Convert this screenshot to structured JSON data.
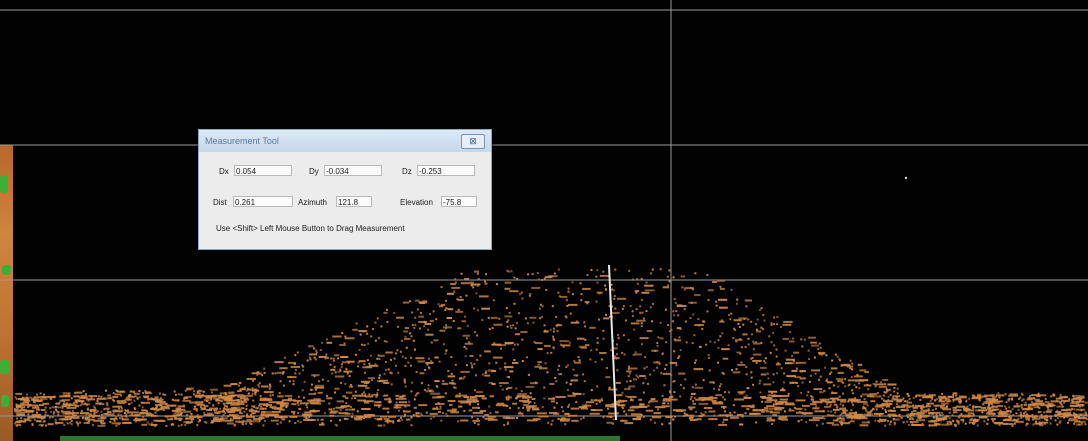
{
  "dialog": {
    "title": "Measurement Tool",
    "close_glyph": "⊠",
    "dx_label": "Dx",
    "dx_value": "0.054",
    "dy_label": "Dy",
    "dy_value": "-0.034",
    "dz_label": "Dz",
    "dz_value": "-0.253",
    "dist_label": "Dist",
    "dist_value": "0.261",
    "azimuth_label": "Azimuth",
    "azimuth_value": "121.8",
    "elevation_label": "Elevation",
    "elevation_value": "-75.8",
    "hint": "Use <Shift> Left Mouse Button to Drag Measurement"
  },
  "colors": {
    "background": "#020202",
    "points": "#d08a48",
    "grid": "#9a9a9a",
    "measure_line": "#e8e8e8",
    "terrain_strip": "#c27435",
    "vegetation": "#3fae35"
  }
}
